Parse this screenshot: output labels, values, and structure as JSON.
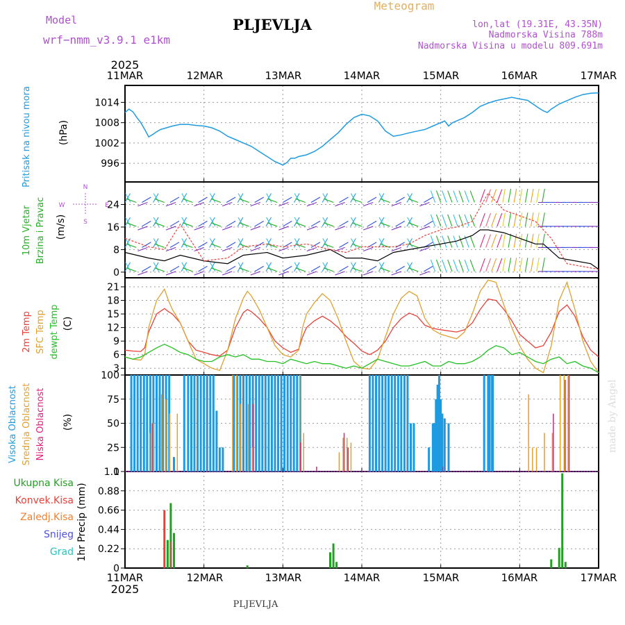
{
  "header": {
    "model_label": "Model",
    "model_name": "wrf−nmm_v3.9.1 e1km",
    "station": "PLJEVLJA",
    "meteogram": "Meteogram",
    "lonlat": "lon,lat (19.31E, 43.35N)",
    "elevation": "Nadmorska Visina 788m",
    "model_elevation": "Nadmorska Visina u modelu 809.691m",
    "year_top": "2025",
    "year_bottom": "2025",
    "footer_station": "PLJEVLJA",
    "watermark": "made by Angel"
  },
  "colors": {
    "pressure": "#1e9be0",
    "wind_label": "#22b022",
    "temp2m": "#e8403a",
    "sfc": "#e0a030",
    "dew": "#22c022",
    "cloud_high": "#1e9be0",
    "cloud_mid": "#e0a030",
    "cloud_low": "#e0207f",
    "rain_total": "#22a022",
    "rain_conv": "#e8403a",
    "rain_frz": "#f08030",
    "snow": "#5050e0",
    "graupel": "#30c0c0",
    "compass": "#b050d0"
  },
  "x_axis": {
    "labels": [
      "11MAR",
      "12MAR",
      "13MAR",
      "14MAR",
      "15MAR",
      "16MAR",
      "17MAR"
    ]
  },
  "panels": {
    "pressure": {
      "label": "Pritisak na nivou mora",
      "unit": "(hPa)"
    },
    "wind": {
      "label1": "10m Vjetar",
      "label2": "Brzina i Pravac",
      "unit": "(m/s)",
      "compass": {
        "n": "N",
        "s": "S",
        "e": "E",
        "w": "W"
      }
    },
    "temperature": {
      "label1": "2m Temp",
      "label2": "SFC Temp",
      "label3": "dewpt Temp",
      "unit": "(C)"
    },
    "clouds": {
      "label1": "Visoka Oblacnost",
      "label2": "Srednja Oblacnost",
      "label3": "Niska Oblacnost",
      "unit": "(%)"
    },
    "precip": {
      "unit": "1hr Precip (mm)",
      "legend": [
        "Ukupna Kisa",
        "Konvek.Kisa",
        "Zaledj.Kisa",
        "Snijeg",
        "Grad"
      ]
    }
  },
  "chart_data": [
    {
      "type": "line",
      "ylabel": "(hPa)",
      "ylim": [
        990.5,
        1019
      ],
      "yticks": [
        996,
        1002,
        1008,
        1014
      ],
      "grid": true,
      "series": [
        {
          "name": "Pritisak na nivou mora",
          "x": [
            0,
            0.05,
            0.1,
            0.15,
            0.2,
            0.25,
            0.3,
            0.35,
            0.4,
            0.45,
            0.5,
            0.6,
            0.7,
            0.8,
            0.9,
            1.0,
            1.1,
            1.2,
            1.3,
            1.4,
            1.5,
            1.6,
            1.7,
            1.8,
            1.9,
            2.0,
            2.05,
            2.1,
            2.15,
            2.2,
            2.3,
            2.4,
            2.5,
            2.6,
            2.7,
            2.8,
            2.9,
            3.0,
            3.1,
            3.2,
            3.3,
            3.4,
            3.5,
            3.6,
            3.7,
            3.8,
            3.9,
            4.0,
            4.05,
            4.1,
            4.15,
            4.2,
            4.3,
            4.4,
            4.5,
            4.6,
            4.7,
            4.8,
            4.9,
            5.0,
            5.1,
            5.2,
            5.25,
            5.3,
            5.35,
            5.4,
            5.5,
            5.6,
            5.7,
            5.8,
            5.9,
            6.0
          ],
          "values": [
            1011,
            1012,
            1011.2,
            1009.5,
            1008,
            1006,
            1003.8,
            1004.5,
            1005.3,
            1006,
            1006.3,
            1007,
            1007.5,
            1007.5,
            1007.2,
            1007,
            1006.5,
            1005.5,
            1004,
            1003,
            1002,
            1001,
            999.5,
            998,
            996.5,
            995.5,
            996.2,
            997.5,
            997.5,
            998,
            998.5,
            999.5,
            1001,
            1003,
            1005,
            1007.5,
            1009.5,
            1010.5,
            1010,
            1008.5,
            1005.5,
            1004,
            1004.4,
            1005,
            1005.5,
            1006,
            1007,
            1008,
            1008.5,
            1007,
            1008,
            1008.5,
            1009.5,
            1011,
            1012.8,
            1013.8,
            1014.5,
            1015,
            1015.5,
            1015,
            1014.6,
            1013,
            1012.2,
            1011.5,
            1011,
            1012,
            1013.5,
            1014.5,
            1015.5,
            1016.3,
            1016.7,
            1016.8
          ]
        }
      ]
    },
    {
      "type": "scatter",
      "ylabel": "(m/s)",
      "ylim": [
        -2,
        32
      ],
      "yticks": [
        0,
        8,
        16,
        24
      ],
      "series": [
        {
          "name": "speed",
          "x": [
            0,
            0.3,
            0.5,
            0.7,
            1.0,
            1.3,
            1.5,
            1.8,
            2.0,
            2.3,
            2.6,
            2.8,
            3.0,
            3.2,
            3.4,
            3.6,
            3.8,
            4.0,
            4.2,
            4.4,
            4.5,
            4.6,
            4.8,
            5.0,
            5.2,
            5.3,
            5.5,
            5.7,
            5.9,
            6.0
          ],
          "values": [
            7,
            5,
            4,
            6,
            4,
            3,
            6,
            7,
            5,
            6,
            8,
            5,
            5,
            4,
            7,
            8,
            9,
            10,
            11,
            13,
            15,
            15,
            14,
            12,
            10,
            10,
            5,
            4,
            3,
            1
          ]
        },
        {
          "name": "gust",
          "x": [
            0,
            0.3,
            0.5,
            0.7,
            1.0,
            1.3,
            1.5,
            1.8,
            2.0,
            2.3,
            2.6,
            2.8,
            3.0,
            3.2,
            3.4,
            3.6,
            3.8,
            4.0,
            4.2,
            4.4,
            4.6,
            4.8,
            5.0,
            5.2,
            5.4,
            5.6,
            5.8,
            6.0
          ],
          "values": [
            12,
            9,
            8,
            17,
            4,
            5,
            9,
            10,
            9,
            10,
            8,
            7,
            9,
            9,
            9,
            10,
            13,
            15,
            16,
            18,
            28,
            22,
            20,
            18,
            12,
            3,
            2,
            1
          ]
        }
      ]
    },
    {
      "type": "line",
      "ylabel": "(C)",
      "ylim": [
        1.5,
        23
      ],
      "yticks": [
        3,
        6,
        9,
        12,
        15,
        18,
        21
      ],
      "grid": true,
      "series": [
        {
          "name": "2m Temp",
          "x": [
            0,
            0.1,
            0.2,
            0.25,
            0.3,
            0.4,
            0.5,
            0.55,
            0.6,
            0.7,
            0.8,
            0.9,
            1.0,
            1.1,
            1.2,
            1.3,
            1.4,
            1.5,
            1.55,
            1.6,
            1.7,
            1.8,
            1.9,
            2.0,
            2.1,
            2.2,
            2.25,
            2.3,
            2.4,
            2.5,
            2.6,
            2.7,
            2.8,
            2.9,
            3.0,
            3.1,
            3.2,
            3.3,
            3.4,
            3.5,
            3.6,
            3.7,
            3.8,
            3.9,
            4.0,
            4.2,
            4.3,
            4.4,
            4.5,
            4.6,
            4.7,
            4.8,
            4.9,
            5.0,
            5.1,
            5.2,
            5.3,
            5.4,
            5.5,
            5.6,
            5.7,
            5.8,
            5.9,
            6.0
          ],
          "values": [
            7,
            6.8,
            6.7,
            7.5,
            11,
            15,
            16.2,
            15.5,
            15,
            13,
            9,
            7,
            6.5,
            6,
            5.7,
            7,
            12,
            15.3,
            16,
            15.5,
            14,
            12,
            9,
            7.5,
            6.5,
            7.2,
            10,
            12,
            13.5,
            14.5,
            13.5,
            12,
            10,
            8.5,
            6.8,
            6,
            7,
            9,
            12,
            14,
            15.2,
            14.5,
            12.5,
            11.8,
            11.5,
            11,
            11.5,
            13,
            16,
            18.3,
            18,
            16,
            13.5,
            10.5,
            9,
            7.5,
            8,
            11,
            15.5,
            17,
            14.5,
            10,
            7,
            5.5
          ]
        },
        {
          "name": "SFC Temp",
          "x": [
            0,
            0.1,
            0.2,
            0.25,
            0.3,
            0.4,
            0.5,
            0.55,
            0.6,
            0.7,
            0.8,
            0.9,
            1.0,
            1.1,
            1.2,
            1.3,
            1.4,
            1.5,
            1.55,
            1.6,
            1.7,
            1.8,
            1.9,
            2.0,
            2.1,
            2.2,
            2.25,
            2.3,
            2.4,
            2.5,
            2.6,
            2.7,
            2.8,
            2.9,
            3.0,
            3.1,
            3.2,
            3.3,
            3.4,
            3.5,
            3.6,
            3.7,
            3.8,
            3.9,
            4.0,
            4.2,
            4.3,
            4.4,
            4.5,
            4.6,
            4.7,
            4.8,
            4.9,
            5.0,
            5.1,
            5.2,
            5.3,
            5.4,
            5.5,
            5.6,
            5.7,
            5.8,
            5.9,
            6.0
          ],
          "values": [
            5.5,
            5,
            4.8,
            6,
            12,
            18,
            20.5,
            18,
            16,
            13,
            9,
            5,
            4,
            3,
            2.5,
            7,
            14,
            18.5,
            20,
            19,
            16,
            12,
            8,
            6,
            5.5,
            7,
            12,
            15,
            17.5,
            19.5,
            18,
            14,
            9,
            4.5,
            3,
            2.8,
            5,
            10,
            15,
            18.5,
            20,
            19,
            14,
            11.5,
            10.5,
            9.5,
            11,
            15,
            20,
            22.5,
            22,
            17,
            12,
            8,
            5,
            3,
            2,
            8,
            18,
            22,
            16,
            9,
            4.5,
            2
          ]
        },
        {
          "name": "dewpt Temp",
          "x": [
            0,
            0.1,
            0.2,
            0.3,
            0.4,
            0.5,
            0.6,
            0.7,
            0.8,
            0.9,
            1.0,
            1.1,
            1.2,
            1.3,
            1.4,
            1.5,
            1.6,
            1.7,
            1.8,
            1.9,
            2.0,
            2.1,
            2.2,
            2.3,
            2.4,
            2.5,
            2.6,
            2.7,
            2.8,
            2.9,
            3.0,
            3.1,
            3.2,
            3.3,
            3.4,
            3.5,
            3.6,
            3.7,
            3.8,
            3.9,
            4.0,
            4.1,
            4.2,
            4.3,
            4.4,
            4.5,
            4.6,
            4.7,
            4.8,
            4.9,
            5.0,
            5.1,
            5.2,
            5.3,
            5.4,
            5.5,
            5.6,
            5.7,
            5.8,
            5.9,
            6.0
          ],
          "values": [
            5.5,
            5,
            5.5,
            6.5,
            7.5,
            8.3,
            7.5,
            6.5,
            6,
            5,
            4.5,
            4.5,
            5.5,
            6,
            5.5,
            6,
            5,
            5,
            4.5,
            4.5,
            4,
            5,
            4.5,
            4,
            4.5,
            4,
            4,
            3.5,
            3,
            3.5,
            3,
            4,
            5,
            4.5,
            4,
            3.5,
            3.5,
            4,
            4.5,
            3.5,
            3.5,
            4.5,
            4,
            4,
            4.5,
            5.5,
            7,
            8,
            7.5,
            6,
            6.5,
            5.5,
            4.5,
            4,
            5,
            5.5,
            4,
            4.5,
            3.5,
            3,
            2
          ]
        }
      ]
    },
    {
      "type": "bar",
      "ylabel": "(%)",
      "ylim": [
        0,
        100
      ],
      "yticks": [
        0,
        25,
        50,
        75,
        100
      ],
      "series": [
        {
          "name": "Visoka Oblacnost",
          "x": [
            0.08,
            0.12,
            0.16,
            0.2,
            0.24,
            0.28,
            0.32,
            0.36,
            0.4,
            0.44,
            0.48,
            0.52,
            0.56,
            0.62,
            0.75,
            0.8,
            0.84,
            0.88,
            0.92,
            0.96,
            1.0,
            1.04,
            1.08,
            1.12,
            1.16,
            1.2,
            1.24,
            1.38,
            1.42,
            1.46,
            1.5,
            1.54,
            1.58,
            1.62,
            1.66,
            1.7,
            1.74,
            1.78,
            1.82,
            1.86,
            1.9,
            1.94,
            1.98,
            2.02,
            2.06,
            2.1,
            2.14,
            2.18,
            2.22,
            3.1,
            3.14,
            3.18,
            3.22,
            3.26,
            3.3,
            3.34,
            3.38,
            3.42,
            3.46,
            3.5,
            3.54,
            3.58,
            3.62,
            3.66,
            3.85,
            3.9,
            3.92,
            3.94,
            3.96,
            3.98,
            4.0,
            4.02,
            4.05,
            4.1,
            4.55,
            4.6,
            4.62,
            4.65,
            4.66
          ],
          "values": [
            100,
            100,
            100,
            100,
            100,
            100,
            100,
            100,
            100,
            100,
            100,
            100,
            100,
            15,
            100,
            100,
            100,
            100,
            100,
            100,
            100,
            100,
            100,
            100,
            63,
            25,
            25,
            100,
            100,
            100,
            100,
            100,
            100,
            100,
            100,
            100,
            100,
            100,
            100,
            100,
            100,
            100,
            100,
            100,
            100,
            100,
            100,
            100,
            100,
            100,
            100,
            100,
            100,
            100,
            100,
            100,
            100,
            100,
            100,
            100,
            100,
            100,
            50,
            50,
            25,
            50,
            50,
            75,
            90,
            100,
            75,
            60,
            55,
            50,
            100,
            100,
            100,
            100,
            100
          ]
        },
        {
          "name": "Srednja Oblacnost",
          "x": [
            0.3,
            0.35,
            0.45,
            0.5,
            0.55,
            0.65,
            1.35,
            1.4,
            1.45,
            1.55,
            1.6,
            2.2,
            2.25,
            2.7,
            2.75,
            2.8,
            2.85,
            5.1,
            5.15,
            5.2,
            5.3,
            5.4,
            5.5,
            5.55,
            5.6
          ],
          "values": [
            40,
            50,
            80,
            75,
            60,
            60,
            100,
            100,
            70,
            70,
            25,
            100,
            40,
            20,
            35,
            35,
            30,
            80,
            25,
            25,
            40,
            40,
            100,
            100,
            100
          ]
        },
        {
          "name": "Niska Oblacnost",
          "x": [
            0.32,
            1.6,
            2.2,
            2.4,
            2.75,
            2.8,
            4.0,
            5.4,
            5.55,
            5.6
          ],
          "values": [
            50,
            70,
            30,
            5,
            40,
            25,
            5,
            60,
            95,
            100
          ]
        }
      ]
    },
    {
      "type": "bar",
      "ylabel": "1hr Precip (mm)",
      "ylim": [
        0,
        1.1
      ],
      "yticks": [
        0,
        0.22,
        0.44,
        0.66,
        0.88,
        1.1
      ],
      "series": [
        {
          "name": "Ukupna Kisa",
          "x": [
            0.5,
            0.54,
            0.58,
            0.62,
            1.55,
            2.6,
            2.64,
            2.68,
            5.4,
            5.5,
            5.54,
            5.58
          ],
          "values": [
            0.66,
            0.32,
            0.74,
            0.4,
            0.03,
            0.18,
            0.28,
            0.07,
            0.1,
            0.23,
            1.08,
            0.07
          ]
        },
        {
          "name": "Konvek.Kisa",
          "x": [
            0.5,
            0.58
          ],
          "values": [
            0.66,
            0.3
          ]
        }
      ]
    }
  ]
}
